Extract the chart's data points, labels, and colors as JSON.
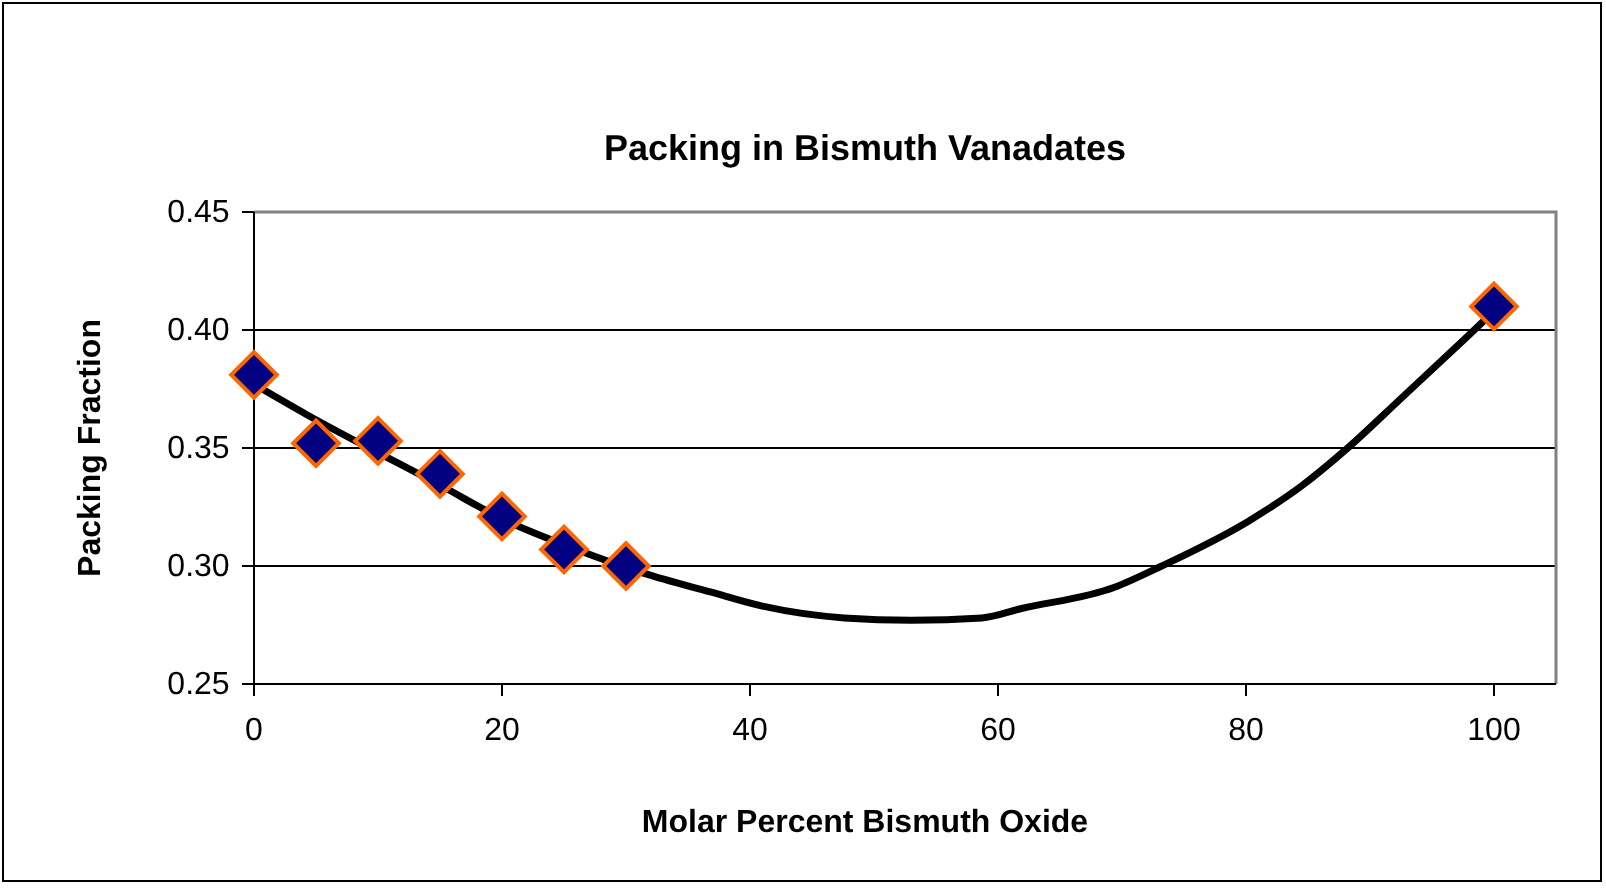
{
  "chart_data": {
    "type": "scatter",
    "title": "Packing in Bismuth Vanadates",
    "xlabel": "Molar Percent Bismuth Oxide",
    "ylabel": "Packing Fraction",
    "xlim": [
      0,
      105
    ],
    "xticks": [
      0,
      20,
      40,
      60,
      80,
      100
    ],
    "ylim": [
      0.25,
      0.45
    ],
    "yticks": [
      {
        "value": 0.25,
        "label": "0.25"
      },
      {
        "value": 0.3,
        "label": "0.30"
      },
      {
        "value": 0.35,
        "label": "0.35"
      },
      {
        "value": 0.4,
        "label": "0.40"
      },
      {
        "value": 0.45,
        "label": "0.45"
      }
    ],
    "grid": "y",
    "marker": "diamond",
    "series": [
      {
        "type": "line",
        "color": "#000000",
        "marker": "none",
        "x": [
          0,
          4.3,
          15.1,
          20,
          26,
          31.4,
          36.8,
          41,
          47.6,
          53,
          58.7,
          61.9,
          69.4,
          73.2,
          80.2,
          84.5,
          88.2,
          92.5,
          97.8,
          100
        ],
        "values": [
          0.377,
          0.364,
          0.334,
          0.32,
          0.307,
          0.297,
          0.289,
          0.283,
          0.278,
          0.277,
          0.278,
          0.282,
          0.291,
          0.3,
          0.319,
          0.334,
          0.35,
          0.371,
          0.397,
          0.408
        ]
      },
      {
        "color": "#000080",
        "x": [
          0,
          5,
          10,
          15,
          20,
          25,
          30,
          100
        ],
        "values": [
          0.381,
          0.352,
          0.353,
          0.339,
          0.321,
          0.307,
          0.3,
          0.41
        ]
      }
    ]
  }
}
